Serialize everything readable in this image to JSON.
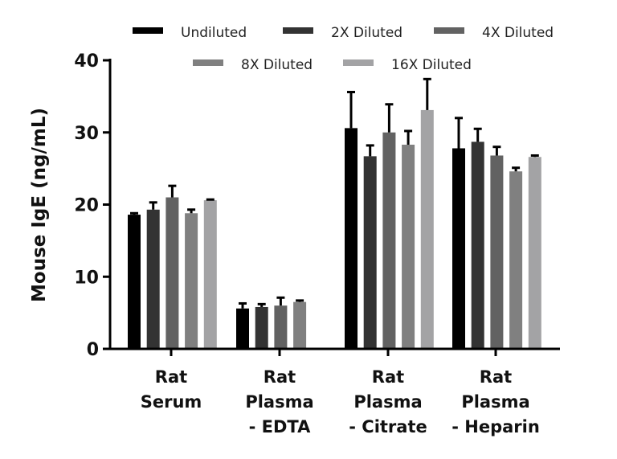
{
  "chart_data": {
    "type": "bar",
    "title": "",
    "xlabel": "",
    "ylabel": "Mouse IgE (ng/mL)",
    "ylim": [
      0,
      40
    ],
    "yticks": [
      0,
      10,
      20,
      30,
      40
    ],
    "grid": false,
    "legend_position": "top",
    "categories": [
      [
        "Rat",
        "Serum"
      ],
      [
        "Rat",
        "Plasma",
        "- EDTA"
      ],
      [
        "Rat",
        "Plasma",
        "- Citrate"
      ],
      [
        "Rat",
        "Plasma",
        "- Heparin"
      ]
    ],
    "series": [
      {
        "name": "Undiluted",
        "color": "#000000",
        "values": [
          18.6,
          5.6,
          30.6,
          27.8
        ],
        "error_top": [
          18.8,
          6.3,
          35.6,
          32.0
        ]
      },
      {
        "name": "2X Diluted",
        "color": "#333333",
        "values": [
          19.3,
          5.8,
          26.7,
          28.7
        ],
        "error_top": [
          20.3,
          6.2,
          28.2,
          30.5
        ]
      },
      {
        "name": "4X Diluted",
        "color": "#626262",
        "values": [
          21.0,
          6.0,
          30.0,
          26.8
        ],
        "error_top": [
          22.6,
          7.1,
          33.9,
          28.0
        ]
      },
      {
        "name": "8X Diluted",
        "color": "#808080",
        "values": [
          18.8,
          6.5,
          28.3,
          24.6
        ],
        "error_top": [
          19.3,
          6.7,
          30.2,
          25.1
        ]
      },
      {
        "name": "16X Diluted",
        "color": "#a3a3a5",
        "values": [
          20.6,
          null,
          33.1,
          26.6
        ],
        "error_top": [
          20.7,
          null,
          37.4,
          26.8
        ]
      }
    ]
  }
}
